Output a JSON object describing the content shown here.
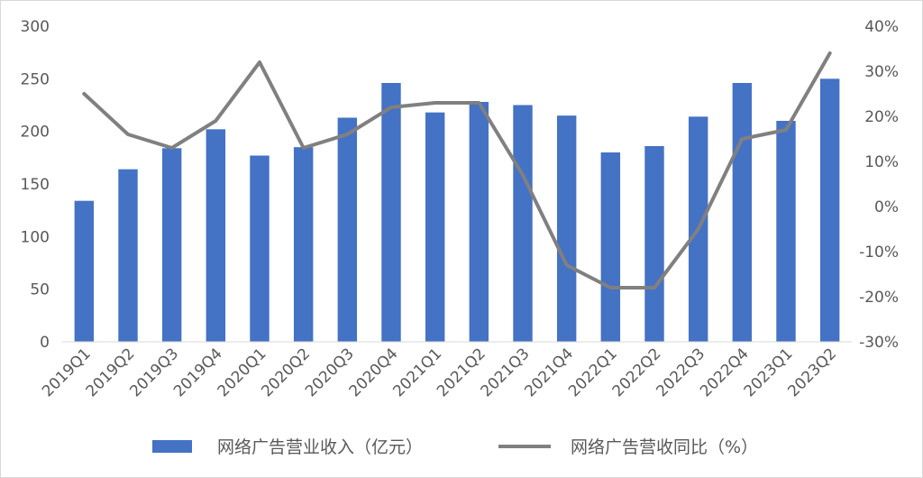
{
  "chart_data": {
    "type": "bar+line",
    "title": "",
    "categories": [
      "2019Q1",
      "2019Q2",
      "2019Q3",
      "2019Q4",
      "2020Q1",
      "2020Q2",
      "2020Q3",
      "2020Q4",
      "2021Q1",
      "2021Q2",
      "2021Q3",
      "2021Q4",
      "2022Q1",
      "2022Q2",
      "2022Q3",
      "2022Q4",
      "2023Q1",
      "2023Q2"
    ],
    "series": [
      {
        "name": "网络广告营业收入（亿元）",
        "type": "bar",
        "axis": "left",
        "color": "#4472c4",
        "values": [
          134,
          164,
          184,
          202,
          177,
          185,
          213,
          246,
          218,
          228,
          225,
          215,
          180,
          186,
          214,
          246,
          210,
          250
        ]
      },
      {
        "name": "网络广告营收同比（%）",
        "type": "line",
        "axis": "right",
        "color": "#808080",
        "values": [
          25,
          16,
          13,
          19,
          32,
          13,
          16,
          22,
          23,
          23,
          7,
          -13,
          -18,
          -18,
          -5,
          15,
          17,
          34
        ]
      }
    ],
    "y_left": {
      "range": [
        0,
        300
      ],
      "ticks": [
        0,
        50,
        100,
        150,
        200,
        250,
        300
      ],
      "tick_labels": [
        "0",
        "50",
        "100",
        "150",
        "200",
        "250",
        "300"
      ]
    },
    "y_right": {
      "range": [
        -30,
        40
      ],
      "ticks": [
        -30,
        -20,
        -10,
        0,
        10,
        20,
        30,
        40
      ],
      "tick_labels": [
        "-30%",
        "-20%",
        "-10%",
        "0%",
        "10%",
        "20%",
        "30%",
        "40%"
      ]
    },
    "grid": false,
    "legend_position": "bottom"
  }
}
